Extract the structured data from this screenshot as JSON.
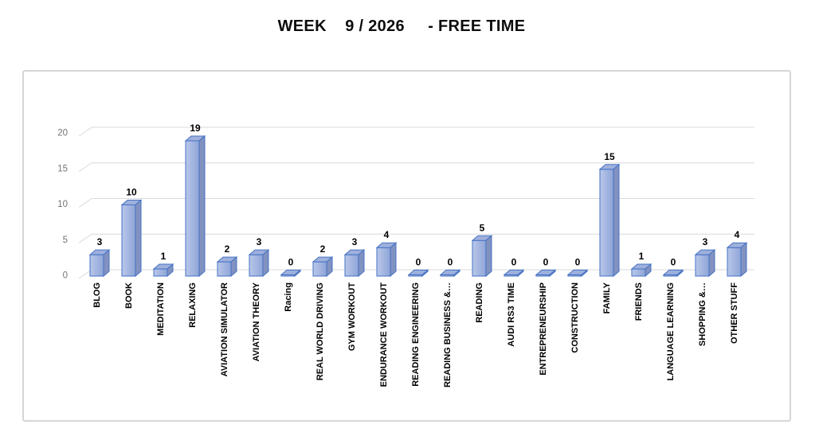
{
  "title": "WEEK    9 / 2026     - FREE TIME",
  "chart_data": {
    "type": "bar",
    "style": "3d-column",
    "title": "WEEK 9 / 2026 - FREE TIME",
    "categories": [
      "BLOG",
      "BOOK",
      "MEDITATION",
      "RELAXING",
      "AVIATION SIMULATOR",
      "AVIATION THEORY",
      "Racing",
      "REAL WORLD DRIVING",
      "GYM WORKOUT",
      "ENDURANCE WORKOUT",
      "READING ENGINEERING",
      "READING BUSINESS &…",
      "READING",
      "AUDI RS3 TIME",
      "ENTREPRENEURSHIP",
      "CONSTRUCTION",
      "FAMILY",
      "FRIENDS",
      "LANGUAGE LEARNING",
      "SHOPPING &…",
      "OTHER STUFF"
    ],
    "values": [
      3,
      10,
      1,
      19,
      2,
      3,
      0,
      2,
      3,
      4,
      0,
      0,
      5,
      0,
      0,
      0,
      15,
      1,
      0,
      3,
      4
    ],
    "yticks": [
      0,
      5,
      10,
      15,
      20
    ],
    "ylim": [
      0,
      20
    ],
    "xlabel": "",
    "ylabel": "",
    "grid": true,
    "legend": false,
    "data_labels": true,
    "colors": {
      "bar_front_light": "#b9c7ea",
      "bar_front_dark": "#8ea5d7",
      "bar_top": "#9fb0dc",
      "bar_side": "#8292c0",
      "bar_border": "#4472c4",
      "grid": "#d9d9d9",
      "axis_text": "#737373",
      "value_label": "#000000",
      "category_label": "#000000",
      "chart_border": "#d6d6d6",
      "background": "#ffffff"
    }
  }
}
